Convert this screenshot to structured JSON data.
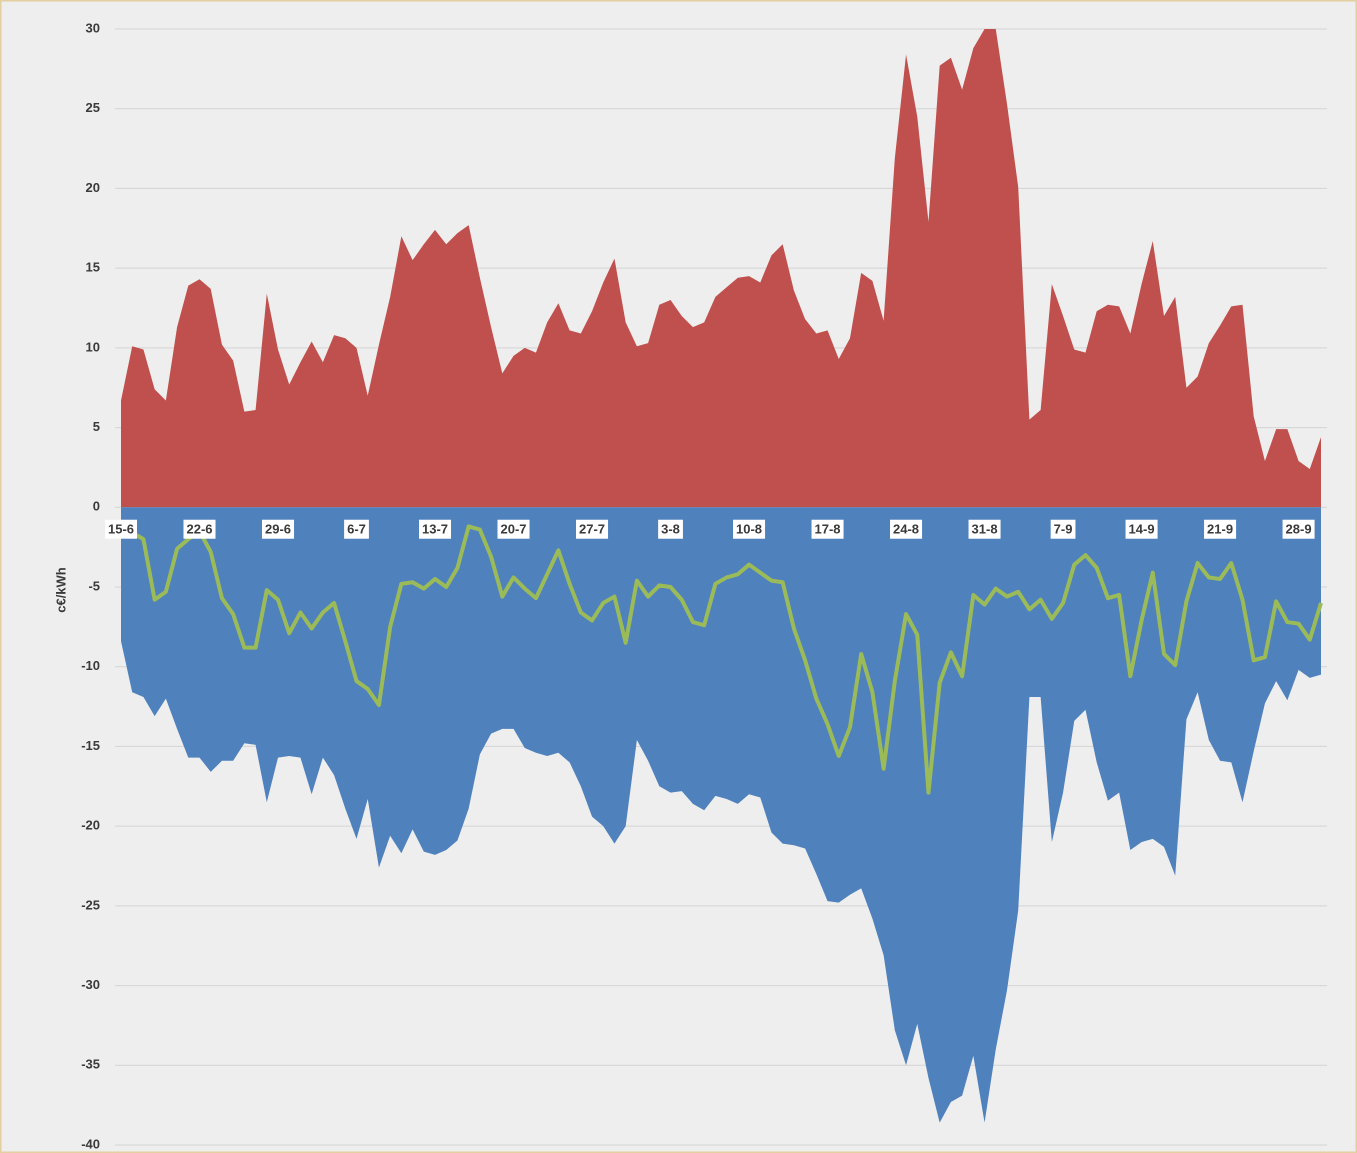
{
  "chart_data": {
    "type": "area",
    "y_label": "c€/kWh",
    "categories": [
      "15-6",
      null,
      null,
      null,
      null,
      null,
      null,
      "22-6",
      null,
      null,
      null,
      null,
      null,
      null,
      "29-6",
      null,
      null,
      null,
      null,
      null,
      null,
      "6-7",
      null,
      null,
      null,
      null,
      null,
      null,
      "13-7",
      null,
      null,
      null,
      null,
      null,
      null,
      "20-7",
      null,
      null,
      null,
      null,
      null,
      null,
      "27-7",
      null,
      null,
      null,
      null,
      null,
      null,
      "3-8",
      null,
      null,
      null,
      null,
      null,
      null,
      "10-8",
      null,
      null,
      null,
      null,
      null,
      null,
      "17-8",
      null,
      null,
      null,
      null,
      null,
      null,
      "24-8",
      null,
      null,
      null,
      null,
      null,
      null,
      "31-8",
      null,
      null,
      null,
      null,
      null,
      null,
      "7-9",
      null,
      null,
      null,
      null,
      null,
      null,
      "14-9",
      null,
      null,
      null,
      null,
      null,
      null,
      "21-9",
      null,
      null,
      null,
      null,
      null,
      null,
      "28-9",
      null,
      null
    ],
    "ylim": [
      -40,
      30
    ],
    "yticks": [
      -40,
      -35,
      -30,
      -25,
      -20,
      -15,
      -10,
      -5,
      0,
      5,
      10,
      15,
      20,
      25,
      30
    ],
    "grid": true,
    "series": [
      {
        "type": "area",
        "color": "#c0504d",
        "values": [
          6.7,
          10.1,
          9.9,
          7.4,
          6.7,
          11.3,
          13.9,
          14.3,
          13.7,
          10.2,
          9.2,
          6.0,
          6.1,
          13.4,
          9.9,
          7.7,
          9.1,
          10.4,
          9.1,
          10.8,
          10.6,
          10.0,
          7.0,
          10.2,
          13.2,
          17.0,
          15.5,
          16.5,
          17.4,
          16.5,
          17.2,
          17.7,
          14.4,
          11.3,
          8.4,
          9.5,
          10.0,
          9.7,
          11.6,
          12.8,
          11.1,
          10.9,
          12.3,
          14.1,
          15.6,
          11.6,
          10.1,
          10.3,
          12.7,
          13.0,
          12.0,
          11.3,
          11.6,
          13.2,
          13.8,
          14.4,
          14.5,
          14.1,
          15.8,
          16.5,
          13.6,
          11.8,
          10.9,
          11.1,
          9.3,
          10.6,
          14.7,
          14.2,
          11.7,
          21.9,
          28.4,
          24.5,
          17.9,
          27.7,
          28.2,
          26.2,
          28.8,
          30,
          30,
          25.3,
          20.1,
          5.5,
          6.1,
          14.0,
          12.0,
          9.9,
          9.7,
          12.3,
          12.7,
          12.6,
          10.9,
          14.0,
          16.7,
          12.0,
          13.2,
          7.5,
          8.2,
          10.3,
          11.4,
          12.6,
          12.7,
          5.7,
          2.9,
          4.9,
          4.9,
          2.9,
          2.4,
          4.4
        ]
      },
      {
        "type": "area",
        "color": "#4f81bd",
        "values": [
          -8.4,
          -11.6,
          -11.9,
          -13.1,
          -12.0,
          -13.9,
          -15.7,
          -15.7,
          -16.6,
          -15.9,
          -15.9,
          -14.8,
          -14.9,
          -18.5,
          -15.7,
          -15.6,
          -15.7,
          -18.0,
          -15.7,
          -16.8,
          -18.9,
          -20.8,
          -18.3,
          -22.6,
          -20.6,
          -21.7,
          -20.2,
          -21.6,
          -21.8,
          -21.5,
          -20.9,
          -18.9,
          -15.5,
          -14.2,
          -13.9,
          -13.9,
          -15.1,
          -15.4,
          -15.6,
          -15.4,
          -16.0,
          -17.5,
          -19.4,
          -20.0,
          -21.1,
          -20.0,
          -14.6,
          -15.9,
          -17.5,
          -17.9,
          -17.8,
          -18.6,
          -19.0,
          -18.1,
          -18.3,
          -18.6,
          -18.0,
          -18.2,
          -20.4,
          -21.1,
          -21.2,
          -21.4,
          -23.0,
          -24.7,
          -24.8,
          -24.3,
          -23.9,
          -25.8,
          -28.1,
          -32.8,
          -35.0,
          -32.4,
          -35.8,
          -38.6,
          -37.3,
          -36.9,
          -34.4,
          -38.6,
          -34.0,
          -30.3,
          -25.3,
          -11.9,
          -11.9,
          -21.0,
          -17.9,
          -13.4,
          -12.7,
          -16.0,
          -18.4,
          -17.9,
          -21.5,
          -21.0,
          -20.8,
          -21.3,
          -23.1,
          -13.3,
          -11.6,
          -14.6,
          -15.9,
          -16.0,
          -18.5,
          -15.3,
          -12.3,
          -10.9,
          -12.1,
          -10.2,
          -10.7,
          -10.5
        ]
      },
      {
        "type": "line",
        "color": "#9bbb59",
        "values": [
          -1.5,
          -1.6,
          -2.0,
          -5.8,
          -5.3,
          -2.6,
          -2.0,
          -1.5,
          -2.8,
          -5.7,
          -6.7,
          -8.8,
          -8.8,
          -5.2,
          -5.8,
          -7.9,
          -6.6,
          -7.6,
          -6.6,
          -6.0,
          -8.4,
          -10.9,
          -11.4,
          -12.4,
          -7.5,
          -4.8,
          -4.7,
          -5.1,
          -4.5,
          -5.0,
          -3.8,
          -1.2,
          -1.4,
          -3.1,
          -5.6,
          -4.4,
          -5.1,
          -5.7,
          -4.2,
          -2.7,
          -4.8,
          -6.6,
          -7.1,
          -6.0,
          -5.6,
          -8.5,
          -4.6,
          -5.6,
          -4.9,
          -5.0,
          -5.8,
          -7.2,
          -7.4,
          -4.8,
          -4.4,
          -4.2,
          -3.6,
          -4.1,
          -4.6,
          -4.7,
          -7.6,
          -9.6,
          -12.0,
          -13.6,
          -15.6,
          -13.8,
          -9.2,
          -11.6,
          -16.4,
          -10.9,
          -6.7,
          -8.0,
          -17.9,
          -11.0,
          -9.1,
          -10.6,
          -5.5,
          -6.1,
          -5.1,
          -5.6,
          -5.3,
          -6.4,
          -5.8,
          -7.0,
          -6.0,
          -3.6,
          -3.0,
          -3.8,
          -5.7,
          -5.5,
          -10.6,
          -7.1,
          -4.1,
          -9.2,
          -9.9,
          -5.9,
          -3.5,
          -4.4,
          -4.5,
          -3.5,
          -5.8,
          -9.6,
          -9.4,
          -5.9,
          -7.2,
          -7.3,
          -8.3,
          -6.0
        ]
      }
    ]
  }
}
